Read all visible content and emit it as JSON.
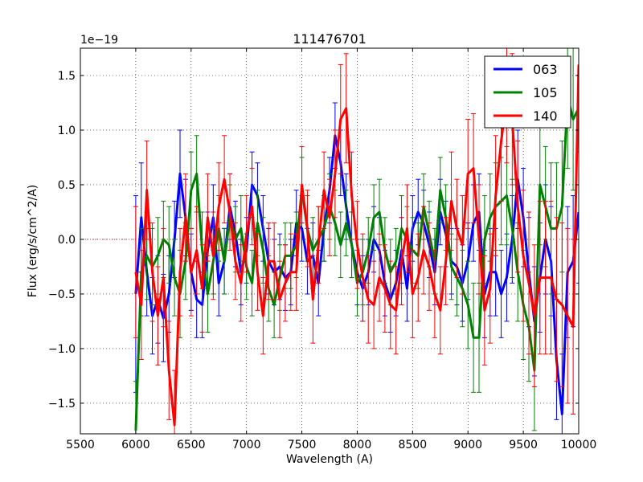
{
  "chart_data": {
    "type": "line",
    "title": "111476701",
    "xlabel": "Wavelength (A)",
    "ylabel": "Flux (erg/s/cm^2/A)",
    "offset_label": "1e−19",
    "xlim": [
      5500,
      10000
    ],
    "ylim": [
      -1.78,
      1.75
    ],
    "xticks": [
      5500,
      6000,
      6500,
      7000,
      7500,
      8000,
      8500,
      9000,
      9500,
      10000
    ],
    "xtick_labels": [
      "5500",
      "6000",
      "6500",
      "7000",
      "7500",
      "8000",
      "8500",
      "9000",
      "9500",
      "10000"
    ],
    "yticks": [
      -1.5,
      -1.0,
      -0.5,
      0.0,
      0.5,
      1.0,
      1.5
    ],
    "ytick_labels": [
      "−1.5",
      "−1.0",
      "−0.5",
      "0.0",
      "0.5",
      "1.0",
      "1.5"
    ],
    "grid": true,
    "legend_position": "top-right",
    "baseline": {
      "x": [
        5500,
        6000
      ],
      "y": 0,
      "color": "#d62728",
      "style": "dotted"
    },
    "series": [
      {
        "name": "063",
        "color": "#0000ff",
        "x": [
          6000,
          6050,
          6100,
          6150,
          6200,
          6250,
          6300,
          6350,
          6400,
          6450,
          6500,
          6550,
          6600,
          6650,
          6700,
          6750,
          6800,
          6850,
          6900,
          6950,
          7000,
          7050,
          7100,
          7150,
          7200,
          7250,
          7300,
          7350,
          7400,
          7450,
          7500,
          7550,
          7600,
          7650,
          7700,
          7750,
          7800,
          7850,
          7900,
          7950,
          8000,
          8050,
          8100,
          8150,
          8200,
          8250,
          8300,
          8350,
          8400,
          8450,
          8500,
          8550,
          8600,
          8650,
          8700,
          8750,
          8800,
          8850,
          8900,
          8950,
          9000,
          9050,
          9100,
          9150,
          9200,
          9250,
          9300,
          9350,
          9400,
          9450,
          9500,
          9550,
          9600,
          9650,
          9700,
          9750,
          9800,
          9850,
          9900,
          9950,
          10000
        ],
        "y": [
          -0.5,
          0.2,
          -0.3,
          -0.7,
          -0.55,
          -0.72,
          -0.5,
          0.0,
          0.6,
          0.2,
          -0.3,
          -0.55,
          -0.6,
          -0.1,
          0.2,
          -0.4,
          -0.2,
          0.3,
          0.05,
          -0.3,
          -0.1,
          0.5,
          0.4,
          0.1,
          -0.2,
          -0.3,
          -0.25,
          -0.35,
          -0.3,
          0.15,
          0.1,
          -0.2,
          -0.15,
          -0.4,
          0.1,
          0.45,
          0.95,
          0.7,
          0.3,
          -0.05,
          -0.3,
          -0.45,
          -0.3,
          0.0,
          -0.1,
          -0.4,
          -0.55,
          -0.4,
          -0.1,
          -0.45,
          0.1,
          0.25,
          0.15,
          -0.05,
          -0.3,
          0.25,
          0.05,
          -0.2,
          -0.25,
          -0.4,
          -0.2,
          0.15,
          0.25,
          -0.5,
          -0.3,
          -0.3,
          -0.5,
          -0.35,
          0.0,
          0.55,
          0.2,
          -0.3,
          -0.75,
          -0.35,
          0.0,
          -0.2,
          -1.1,
          -1.6,
          -0.3,
          -0.2,
          0.25
        ],
        "err": [
          0.9,
          0.5,
          0.4,
          0.35,
          0.4,
          0.4,
          0.35,
          0.35,
          0.4,
          0.35,
          0.35,
          0.35,
          0.3,
          0.35,
          0.3,
          0.3,
          0.3,
          0.3,
          0.3,
          0.3,
          0.3,
          0.3,
          0.3,
          0.3,
          0.3,
          0.3,
          0.3,
          0.3,
          0.3,
          0.3,
          0.3,
          0.3,
          0.3,
          0.3,
          0.3,
          0.3,
          0.3,
          0.3,
          0.3,
          0.3,
          0.3,
          0.3,
          0.3,
          0.3,
          0.3,
          0.3,
          0.3,
          0.3,
          0.3,
          0.3,
          0.3,
          0.3,
          0.3,
          0.3,
          0.3,
          0.3,
          0.3,
          0.3,
          0.35,
          0.35,
          0.35,
          0.35,
          0.35,
          0.4,
          0.4,
          0.4,
          0.4,
          0.4,
          0.4,
          0.45,
          0.45,
          0.5,
          0.5,
          0.5,
          0.5,
          0.5,
          0.55,
          0.55,
          0.6,
          0.6,
          0.65
        ]
      },
      {
        "name": "105",
        "color": "#008000",
        "x": [
          6000,
          6050,
          6100,
          6150,
          6200,
          6250,
          6300,
          6350,
          6400,
          6450,
          6500,
          6550,
          6600,
          6650,
          6700,
          6750,
          6800,
          6850,
          6900,
          6950,
          7000,
          7050,
          7100,
          7150,
          7200,
          7250,
          7300,
          7350,
          7400,
          7450,
          7500,
          7550,
          7600,
          7650,
          7700,
          7750,
          7800,
          7850,
          7900,
          7950,
          8000,
          8050,
          8100,
          8150,
          8200,
          8250,
          8300,
          8350,
          8400,
          8450,
          8500,
          8550,
          8600,
          8650,
          8700,
          8750,
          8800,
          8850,
          8900,
          8950,
          9000,
          9050,
          9100,
          9150,
          9200,
          9250,
          9300,
          9350,
          9400,
          9450,
          9500,
          9550,
          9600,
          9650,
          9700,
          9750,
          9800,
          9850,
          9900,
          9950,
          10000
        ],
        "y": [
          -1.75,
          -0.3,
          -0.15,
          -0.25,
          -0.15,
          0.0,
          -0.05,
          -0.35,
          -0.5,
          -0.2,
          0.45,
          0.6,
          -0.1,
          -0.5,
          -0.2,
          0.1,
          -0.2,
          0.2,
          0.0,
          0.1,
          -0.25,
          -0.4,
          0.15,
          -0.1,
          -0.45,
          -0.6,
          -0.35,
          -0.15,
          -0.15,
          -0.05,
          0.45,
          0.1,
          -0.1,
          0.0,
          0.1,
          0.3,
          0.15,
          -0.05,
          0.15,
          -0.05,
          -0.4,
          -0.3,
          -0.1,
          0.2,
          0.25,
          -0.1,
          -0.3,
          -0.2,
          0.1,
          0.0,
          -0.1,
          -0.15,
          0.3,
          0.05,
          -0.2,
          0.45,
          0.2,
          -0.25,
          -0.35,
          -0.45,
          -0.6,
          -0.9,
          -0.9,
          0.0,
          0.2,
          0.3,
          0.35,
          0.4,
          0.1,
          -0.3,
          -0.6,
          -0.8,
          -1.2,
          0.5,
          0.3,
          0.1,
          0.1,
          0.3,
          1.3,
          1.1,
          1.2
        ],
        "err": [
          0.45,
          0.4,
          0.4,
          0.35,
          0.35,
          0.35,
          0.35,
          0.35,
          0.4,
          0.35,
          0.35,
          0.35,
          0.35,
          0.35,
          0.3,
          0.3,
          0.3,
          0.3,
          0.3,
          0.3,
          0.3,
          0.3,
          0.3,
          0.3,
          0.3,
          0.3,
          0.3,
          0.3,
          0.3,
          0.3,
          0.3,
          0.3,
          0.3,
          0.3,
          0.3,
          0.3,
          0.3,
          0.3,
          0.3,
          0.3,
          0.3,
          0.3,
          0.3,
          0.3,
          0.3,
          0.3,
          0.3,
          0.3,
          0.3,
          0.3,
          0.3,
          0.3,
          0.3,
          0.3,
          0.3,
          0.3,
          0.3,
          0.3,
          0.35,
          0.35,
          0.4,
          0.5,
          0.5,
          0.4,
          0.4,
          0.4,
          0.4,
          0.45,
          0.45,
          0.45,
          0.5,
          0.5,
          0.55,
          0.55,
          0.55,
          0.6,
          0.6,
          0.6,
          0.65,
          0.65,
          0.7
        ]
      },
      {
        "name": "140",
        "color": "#ff0000",
        "x": [
          6000,
          6050,
          6100,
          6150,
          6200,
          6250,
          6300,
          6350,
          6400,
          6450,
          6500,
          6550,
          6600,
          6650,
          6700,
          6750,
          6800,
          6850,
          6900,
          6950,
          7000,
          7050,
          7100,
          7150,
          7200,
          7250,
          7300,
          7350,
          7400,
          7450,
          7500,
          7550,
          7600,
          7650,
          7700,
          7750,
          7800,
          7850,
          7900,
          7950,
          8000,
          8050,
          8100,
          8150,
          8200,
          8250,
          8300,
          8350,
          8400,
          8450,
          8500,
          8550,
          8600,
          8650,
          8700,
          8750,
          8800,
          8850,
          8900,
          8950,
          9000,
          9050,
          9100,
          9150,
          9200,
          9250,
          9300,
          9350,
          9400,
          9450,
          9500,
          9550,
          9600,
          9650,
          9700,
          9750,
          9800,
          9850,
          9900,
          9950,
          10000
        ],
        "y": [
          -0.3,
          -0.6,
          0.45,
          -0.3,
          -0.7,
          -0.35,
          -1.2,
          -1.7,
          -0.3,
          0.2,
          -0.3,
          -0.1,
          -0.45,
          0.2,
          -0.15,
          0.3,
          0.55,
          0.25,
          -0.2,
          -0.4,
          0.05,
          0.3,
          -0.3,
          -0.7,
          -0.2,
          -0.2,
          -0.55,
          -0.4,
          -0.3,
          -0.3,
          0.5,
          0.1,
          -0.55,
          -0.05,
          0.45,
          0.2,
          0.6,
          1.1,
          1.2,
          0.4,
          -0.05,
          -0.35,
          -0.55,
          -0.6,
          -0.35,
          -0.45,
          -0.6,
          -0.65,
          -0.2,
          0.1,
          -0.5,
          -0.35,
          -0.1,
          -0.25,
          -0.5,
          -0.65,
          -0.2,
          0.35,
          0.1,
          -0.05,
          0.6,
          0.65,
          0.0,
          -0.65,
          -0.45,
          0.4,
          0.9,
          1.3,
          1.1,
          0.3,
          -0.15,
          -0.4,
          -0.7,
          -0.35,
          -0.35,
          -0.35,
          -0.55,
          -0.6,
          -0.7,
          -0.8,
          1.6
        ],
        "err": [
          0.6,
          0.5,
          0.45,
          0.45,
          0.45,
          0.45,
          0.45,
          0.5,
          0.4,
          0.4,
          0.4,
          0.4,
          0.4,
          0.4,
          0.4,
          0.4,
          0.4,
          0.35,
          0.35,
          0.35,
          0.35,
          0.35,
          0.35,
          0.35,
          0.35,
          0.35,
          0.35,
          0.35,
          0.35,
          0.35,
          0.35,
          0.35,
          0.4,
          0.35,
          0.35,
          0.35,
          0.4,
          0.5,
          0.5,
          0.4,
          0.4,
          0.4,
          0.4,
          0.4,
          0.4,
          0.4,
          0.4,
          0.4,
          0.4,
          0.4,
          0.4,
          0.4,
          0.4,
          0.4,
          0.4,
          0.4,
          0.4,
          0.45,
          0.45,
          0.45,
          0.5,
          0.5,
          0.5,
          0.5,
          0.5,
          0.55,
          0.55,
          0.6,
          0.6,
          0.6,
          0.6,
          0.65,
          0.65,
          0.7,
          0.7,
          0.7,
          0.75,
          0.75,
          0.8,
          0.8,
          0.8
        ]
      }
    ]
  }
}
